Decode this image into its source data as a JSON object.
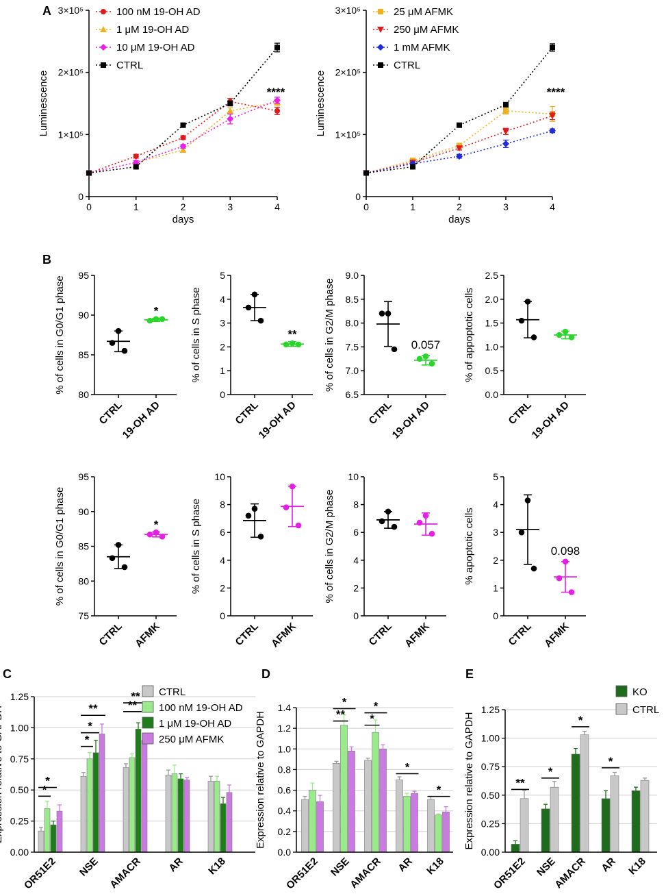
{
  "figure": {
    "panel_labels": {
      "A": "A",
      "B": "B",
      "C": "C",
      "D": "D",
      "E": "E"
    }
  },
  "chart_data": [
    {
      "id": "A1",
      "type": "line",
      "title": "",
      "xlabel": "days",
      "ylabel": "Luminescence",
      "x": [
        0,
        1,
        2,
        3,
        4
      ],
      "xticks": [
        "0",
        "1",
        "2",
        "3",
        "4"
      ],
      "ylim": [
        0,
        300000
      ],
      "yticks": [
        {
          "v": 0,
          "label": "0"
        },
        {
          "v": 100000,
          "label": "1×10⁵"
        },
        {
          "v": 200000,
          "label": "2×10⁵"
        },
        {
          "v": 300000,
          "label": "3×10⁵"
        }
      ],
      "legend_position": "top-left",
      "annotation": "****",
      "series": [
        {
          "name": "100 nM  19-OH AD",
          "color": "#e0191b",
          "marker": "circle",
          "values": [
            38000,
            65000,
            95000,
            153000,
            138000
          ],
          "errors": [
            2000,
            3000,
            3000,
            5000,
            6000
          ]
        },
        {
          "name": "1 μM 19-OH AD",
          "color": "#f2b021",
          "marker": "triangle",
          "values": [
            38000,
            55000,
            75000,
            138000,
            152000
          ],
          "errors": [
            2000,
            3000,
            3000,
            5000,
            5000
          ]
        },
        {
          "name": "10 μM 19-OH AD",
          "color": "#ea1fe8",
          "marker": "diamond",
          "values": [
            38000,
            55000,
            81000,
            125000,
            155000
          ],
          "errors": [
            2000,
            3000,
            3000,
            8000,
            5000
          ]
        },
        {
          "name": "CTRL",
          "color": "#000000",
          "marker": "square",
          "values": [
            38000,
            48000,
            115000,
            150000,
            240000
          ],
          "errors": [
            2000,
            3000,
            3000,
            4000,
            7000
          ]
        }
      ]
    },
    {
      "id": "A2",
      "type": "line",
      "title": "",
      "xlabel": "days",
      "ylabel": "Luminescence",
      "x": [
        0,
        1,
        2,
        3,
        4
      ],
      "xticks": [
        "0",
        "1",
        "2",
        "3",
        "4"
      ],
      "ylim": [
        0,
        300000
      ],
      "yticks": [
        {
          "v": 0,
          "label": "0"
        },
        {
          "v": 100000,
          "label": "1×10⁵"
        },
        {
          "v": 200000,
          "label": "2×10⁵"
        },
        {
          "v": 300000,
          "label": "3×10⁵"
        }
      ],
      "legend_position": "top-left",
      "annotation": "****",
      "series": [
        {
          "name": "25 μM AFMK",
          "color": "#f2b021",
          "marker": "square",
          "values": [
            38000,
            58000,
            82000,
            138000,
            133000
          ],
          "errors": [
            2000,
            4000,
            4000,
            5000,
            12000
          ]
        },
        {
          "name": "250 μM AFMK",
          "color": "#e0191b",
          "marker": "triangle-down",
          "values": [
            38000,
            55000,
            78000,
            105000,
            130000
          ],
          "errors": [
            2000,
            3000,
            3000,
            5000,
            6000
          ]
        },
        {
          "name": "1 mM AFMK",
          "color": "#1f2bd8",
          "marker": "diamond",
          "values": [
            38000,
            53000,
            65000,
            85000,
            106000
          ],
          "errors": [
            2000,
            3000,
            3000,
            6000,
            3000
          ]
        },
        {
          "name": "CTRL",
          "color": "#000000",
          "marker": "square",
          "values": [
            38000,
            48000,
            115000,
            148000,
            240000
          ],
          "errors": [
            2000,
            3000,
            3000,
            3000,
            6000
          ]
        }
      ]
    },
    {
      "id": "B1",
      "type": "scatter",
      "ylabel": "% of cells in G0/G1 phase",
      "ylim": [
        80,
        95
      ],
      "yticks": [
        "80",
        "85",
        "90",
        "95"
      ],
      "categories": [
        "CTRL",
        "19-OH AD"
      ],
      "colors": [
        "#000000",
        "#2bd62b"
      ],
      "points": [
        [
          88.0,
          86.5,
          85.5
        ],
        [
          89.5,
          89.3,
          89.5
        ]
      ],
      "mean": [
        86.7,
        89.4
      ],
      "sd": [
        1.3,
        0.2
      ],
      "annotation": "*",
      "annotation_for": 1
    },
    {
      "id": "B2",
      "type": "scatter",
      "ylabel": "% of cells in S phase",
      "ylim": [
        0,
        5
      ],
      "yticks": [
        "0",
        "1",
        "2",
        "3",
        "4",
        "5"
      ],
      "categories": [
        "CTRL",
        "19-OH AD"
      ],
      "colors": [
        "#000000",
        "#2bd62b"
      ],
      "points": [
        [
          4.2,
          3.65,
          3.1
        ],
        [
          2.15,
          2.1,
          2.1
        ]
      ],
      "mean": [
        3.65,
        2.12
      ],
      "sd": [
        0.55,
        0.1
      ],
      "annotation": "**",
      "annotation_for": 1
    },
    {
      "id": "B3",
      "type": "scatter",
      "ylabel": "% of cells in G2/M phase",
      "ylim": [
        6.5,
        9.0
      ],
      "yticks": [
        "6.5",
        "7.0",
        "7.5",
        "8.0",
        "8.5",
        "9.0"
      ],
      "categories": [
        "CTRL",
        "19-OH AD"
      ],
      "colors": [
        "#000000",
        "#2bd62b"
      ],
      "points": [
        [
          8.2,
          8.2,
          7.45
        ],
        [
          7.3,
          7.25,
          7.15
        ]
      ],
      "mean": [
        7.98,
        7.22
      ],
      "sd": [
        0.47,
        0.1
      ],
      "annotation": "0.057",
      "annotation_for": 1
    },
    {
      "id": "B4",
      "type": "scatter",
      "ylabel": "% of appoptotic cells",
      "ylim": [
        0,
        2.5
      ],
      "yticks": [
        "0.0",
        "0.5",
        "1.0",
        "1.5",
        "2.0",
        "2.5"
      ],
      "categories": [
        "CTRL",
        "19-OH AD"
      ],
      "colors": [
        "#000000",
        "#2bd62b"
      ],
      "points": [
        [
          1.95,
          1.55,
          1.2
        ],
        [
          1.32,
          1.25,
          1.2
        ]
      ],
      "mean": [
        1.57,
        1.25
      ],
      "sd": [
        0.38,
        0.08
      ],
      "annotation": "",
      "annotation_for": 1
    },
    {
      "id": "B5",
      "type": "scatter",
      "ylabel": "% of cells in G0/G1 phase",
      "ylim": [
        75,
        95
      ],
      "yticks": [
        "75",
        "80",
        "85",
        "90",
        "95"
      ],
      "categories": [
        "CTRL",
        "AFMK"
      ],
      "colors": [
        "#000000",
        "#e61ee6"
      ],
      "points": [
        [
          85.2,
          83.3,
          82.0
        ],
        [
          87.0,
          86.7,
          86.4
        ]
      ],
      "mean": [
        83.5,
        86.7
      ],
      "sd": [
        1.7,
        0.35
      ],
      "annotation": "*",
      "annotation_for": 1
    },
    {
      "id": "B6",
      "type": "scatter",
      "ylabel": "% of cells in S phase",
      "ylim": [
        0,
        10
      ],
      "yticks": [
        "0",
        "2",
        "4",
        "6",
        "8",
        "10"
      ],
      "categories": [
        "CTRL",
        "AFMK"
      ],
      "colors": [
        "#000000",
        "#e61ee6"
      ],
      "points": [
        [
          7.7,
          7.2,
          5.7
        ],
        [
          9.3,
          7.8,
          6.5
        ]
      ],
      "mean": [
        6.85,
        7.87
      ],
      "sd": [
        1.2,
        1.45
      ],
      "annotation": "",
      "annotation_for": 1
    },
    {
      "id": "B7",
      "type": "scatter",
      "ylabel": "% of cells in G2/M phase",
      "ylim": [
        0,
        10
      ],
      "yticks": [
        "0",
        "2",
        "4",
        "6",
        "8",
        "10"
      ],
      "categories": [
        "CTRL",
        "AFMK"
      ],
      "colors": [
        "#000000",
        "#e61ee6"
      ],
      "points": [
        [
          7.5,
          6.8,
          6.4
        ],
        [
          7.2,
          6.7,
          5.9
        ]
      ],
      "mean": [
        6.9,
        6.6
      ],
      "sd": [
        0.6,
        0.8
      ],
      "annotation": "",
      "annotation_for": 1
    },
    {
      "id": "B8",
      "type": "scatter",
      "ylabel": "% apoptotic cells",
      "ylim": [
        0,
        5
      ],
      "yticks": [
        "0",
        "1",
        "2",
        "3",
        "4",
        "5"
      ],
      "categories": [
        "CTRL",
        "AFMK"
      ],
      "colors": [
        "#000000",
        "#e61ee6"
      ],
      "points": [
        [
          4.15,
          3.0,
          1.7
        ],
        [
          1.95,
          1.35,
          0.85
        ]
      ],
      "mean": [
        3.1,
        1.4
      ],
      "sd": [
        1.25,
        0.55
      ],
      "annotation": "0.098",
      "annotation_for": 1
    },
    {
      "id": "C",
      "type": "bar",
      "ylabel": "Expression  relative to GAPDH",
      "ylim": [
        0,
        1.25
      ],
      "yticks": [
        "0.00",
        "0.25",
        "0.50",
        "0.75",
        "1.00",
        "1.25"
      ],
      "categories": [
        "OR51E2",
        "NSE",
        "AMACR",
        "AR",
        "K18"
      ],
      "legend_position": "top-right",
      "series": [
        {
          "name": "CTRL",
          "color": "#c8c8c8",
          "values": [
            0.17,
            0.61,
            0.68,
            0.62,
            0.57
          ],
          "errors": [
            0.03,
            0.03,
            0.03,
            0.04,
            0.04
          ]
        },
        {
          "name": "100 nM 19-OH AD",
          "color": "#9ae98a",
          "values": [
            0.35,
            0.75,
            0.76,
            0.63,
            0.57
          ],
          "errors": [
            0.06,
            0.05,
            0.03,
            0.07,
            0.04
          ]
        },
        {
          "name": "1 μM 19-OH AD",
          "color": "#1e7d1a",
          "values": [
            0.22,
            0.8,
            0.99,
            0.59,
            0.39
          ],
          "errors": [
            0.03,
            0.1,
            0.05,
            0.04,
            0.05
          ]
        },
        {
          "name": "250 μM AFMK",
          "color": "#c97bdf",
          "values": [
            0.33,
            0.95,
            0.9,
            0.58,
            0.48
          ],
          "errors": [
            0.05,
            0.08,
            0.05,
            0.02,
            0.06
          ]
        }
      ],
      "significance": [
        {
          "cat": 0,
          "from": 0,
          "to": 1,
          "label": "*",
          "y": 0.45
        },
        {
          "cat": 0,
          "from": 0,
          "to": 2,
          "label": "*",
          "y": 0.52
        },
        {
          "cat": 1,
          "from": 0,
          "to": 1,
          "label": "*",
          "y": 0.85
        },
        {
          "cat": 1,
          "from": 0,
          "to": 2,
          "label": "*",
          "y": 0.96
        },
        {
          "cat": 1,
          "from": 0,
          "to": 3,
          "label": "**",
          "y": 1.1
        },
        {
          "cat": 2,
          "from": 0,
          "to": 2,
          "label": "**",
          "y": 1.13
        },
        {
          "cat": 2,
          "from": 0,
          "to": 3,
          "label": "**",
          "y": 1.2
        }
      ]
    },
    {
      "id": "D",
      "type": "bar",
      "ylabel": "Expression  relative to GAPDH",
      "ylim": [
        0,
        1.4
      ],
      "yticks": [
        "0.0",
        "0.2",
        "0.4",
        "0.6",
        "0.8",
        "1.0",
        "1.2",
        "1.4"
      ],
      "categories": [
        "OR51E2",
        "NSE",
        "AMACR",
        "AR",
        "K18"
      ],
      "series": [
        {
          "name": "CTRL",
          "color": "#c8c8c8",
          "values": [
            0.51,
            0.86,
            0.89,
            0.7,
            0.51
          ],
          "errors": [
            0.03,
            0.02,
            0.02,
            0.03,
            0.03
          ]
        },
        {
          "name": "100 nM 19-OH AD",
          "color": "#9ae98a",
          "values": [
            0.6,
            1.23,
            1.16,
            0.54,
            0.36
          ],
          "errors": [
            0.07,
            0.1,
            0.12,
            0.03,
            0.01
          ]
        },
        {
          "name": "250 μM AFMK",
          "color": "#c97bdf",
          "values": [
            0.49,
            0.98,
            1.0,
            0.57,
            0.39
          ],
          "errors": [
            0.06,
            0.04,
            0.04,
            0.02,
            0.05
          ]
        }
      ],
      "significance": [
        {
          "cat": 1,
          "from": 0,
          "to": 1,
          "label": "**",
          "y": 1.27
        },
        {
          "cat": 1,
          "from": 0,
          "to": 2,
          "label": "*",
          "y": 1.39
        },
        {
          "cat": 2,
          "from": 0,
          "to": 1,
          "label": "*",
          "y": 1.23
        },
        {
          "cat": 2,
          "from": 0,
          "to": 2,
          "label": "*",
          "y": 1.35
        },
        {
          "cat": 3,
          "from": 0,
          "to": 2,
          "label": "*",
          "y": 0.76
        },
        {
          "cat": 4,
          "from": 0,
          "to": 2,
          "label": "*",
          "y": 0.54
        }
      ]
    },
    {
      "id": "E",
      "type": "bar",
      "ylabel": "Expression  relative to GAPDH",
      "ylim": [
        0,
        1.25
      ],
      "yticks": [
        "0.00",
        "0.25",
        "0.50",
        "0.75",
        "1.00",
        "1.25"
      ],
      "categories": [
        "OR51E2",
        "NSE",
        "AMACR",
        "AR",
        "K18"
      ],
      "legend_position": "top-right",
      "series": [
        {
          "name": "KO",
          "color": "#1e6b1b",
          "values": [
            0.07,
            0.38,
            0.86,
            0.47,
            0.54
          ],
          "errors": [
            0.03,
            0.04,
            0.05,
            0.07,
            0.03
          ]
        },
        {
          "name": "CTRL",
          "color": "#c8c8c8",
          "values": [
            0.47,
            0.57,
            1.03,
            0.67,
            0.63
          ],
          "errors": [
            0.07,
            0.05,
            0.03,
            0.03,
            0.02
          ]
        }
      ],
      "significance": [
        {
          "cat": 0,
          "from": 0,
          "to": 1,
          "label": "**",
          "y": 0.55
        },
        {
          "cat": 1,
          "from": 0,
          "to": 1,
          "label": "*",
          "y": 0.65
        },
        {
          "cat": 2,
          "from": 0,
          "to": 1,
          "label": "*",
          "y": 1.1
        },
        {
          "cat": 3,
          "from": 0,
          "to": 1,
          "label": "*",
          "y": 0.74
        }
      ]
    }
  ]
}
